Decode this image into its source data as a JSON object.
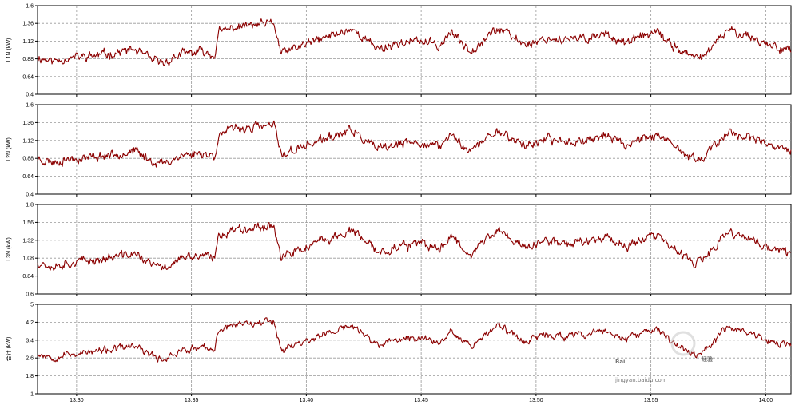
{
  "chart_data": [
    {
      "type": "line",
      "ylabel": "L1N (kW)",
      "ylim": [
        0.4,
        1.6
      ],
      "yticks": [
        "1.6",
        "1.36",
        "1.12",
        "0.88",
        "0.64",
        "0.4"
      ],
      "grid": true,
      "color": "#8b0000",
      "base": 0.9,
      "scale": 0.13,
      "noise": 0.045,
      "seed": 11
    },
    {
      "type": "line",
      "ylabel": "L2N (kW)",
      "ylim": [
        0.4,
        1.6
      ],
      "yticks": [
        "1.6",
        "1.36",
        "1.12",
        "0.88",
        "0.64",
        "0.4"
      ],
      "grid": true,
      "color": "#8b0000",
      "base": 0.88,
      "scale": 0.125,
      "noise": 0.045,
      "seed": 23
    },
    {
      "type": "line",
      "ylabel": "L3N (kW)",
      "ylim": [
        0.6,
        1.8
      ],
      "yticks": [
        "1.8",
        "1.56",
        "1.32",
        "1.08",
        "0.84",
        "0.6"
      ],
      "grid": true,
      "color": "#8b0000",
      "base": 1.03,
      "scale": 0.14,
      "noise": 0.045,
      "seed": 37
    },
    {
      "type": "line",
      "ylabel": "合计 (kW)",
      "ylim": [
        1,
        5
      ],
      "yticks": [
        "5",
        "4.2",
        "3.4",
        "2.6",
        "1.8",
        "1"
      ],
      "grid": true,
      "color": "#8b0000",
      "base": 2.8,
      "scale": 0.42,
      "noise": 0.12,
      "seed": 53
    }
  ],
  "x_axis": {
    "ticks": [
      "13:30",
      "13:35",
      "13:40",
      "13:45",
      "13:50",
      "13:55",
      "14:00"
    ],
    "start_minute": 28.3,
    "end_minute": 61.1
  },
  "profile": {
    "minutes": [
      28.3,
      29.0,
      29.5,
      30.5,
      31.5,
      32.5,
      33.3,
      33.8,
      34.5,
      35.5,
      36.0,
      36.2,
      37.0,
      38.0,
      38.6,
      38.9,
      39.5,
      40.0,
      41.0,
      42.0,
      42.7,
      43.2,
      44.0,
      45.0,
      45.8,
      46.3,
      46.8,
      47.2,
      48.0,
      48.4,
      49.0,
      49.6,
      50.5,
      51.5,
      52.2,
      53.0,
      54.0,
      54.5,
      55.3,
      55.8,
      56.5,
      57.0,
      57.4,
      57.7,
      58.3,
      59.0,
      59.4,
      60.0,
      61.1
    ],
    "levels": [
      0,
      -0.4,
      -0.1,
      0.1,
      0.4,
      0.8,
      -0.3,
      -0.6,
      0.3,
      0.6,
      0.2,
      2.6,
      3.2,
      3.4,
      3.5,
      0.4,
      0.9,
      1.4,
      2.2,
      3.0,
      1.6,
      0.9,
      1.5,
      1.7,
      1.2,
      2.6,
      1.4,
      0.8,
      2.5,
      3.0,
      2.0,
      1.4,
      2.0,
      1.8,
      2.0,
      2.5,
      1.4,
      2.2,
      2.5,
      1.5,
      0.4,
      -0.2,
      0.5,
      1.0,
      2.8,
      2.5,
      2.1,
      1.4,
      0.8
    ]
  },
  "watermark": {
    "line1": "Bai",
    "line2": "经验",
    "url": "jingyan.baidu.com"
  }
}
